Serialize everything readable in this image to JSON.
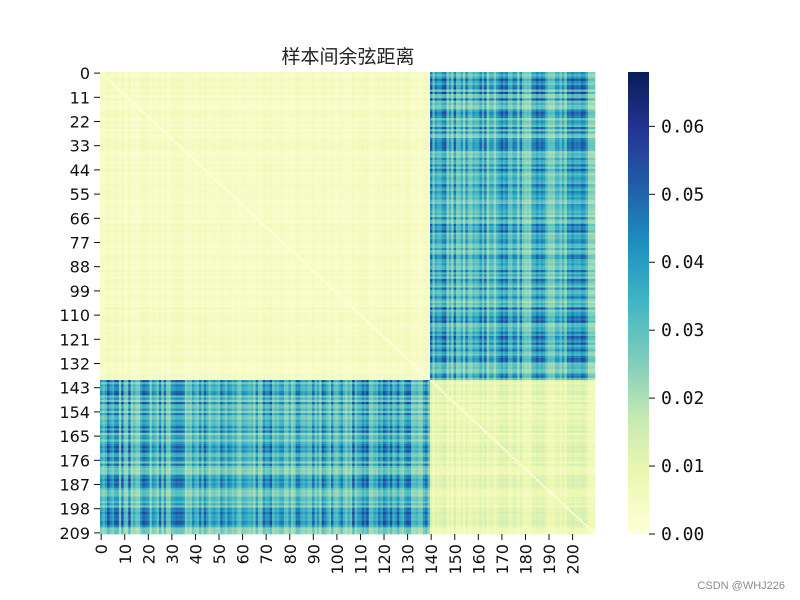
{
  "watermark": "CSDN @WHJ226",
  "chart_data": {
    "type": "heatmap",
    "title": "样本间余弦距离",
    "n_samples": 210,
    "groups": [
      {
        "start": 0,
        "end": 139
      },
      {
        "start": 140,
        "end": 209
      }
    ],
    "value_ranges": {
      "within_group_1": [
        0.0,
        0.008
      ],
      "within_group_2": [
        0.0,
        0.015
      ],
      "between_groups": [
        0.01,
        0.068
      ]
    },
    "y_tick_labels": [
      "0",
      "11",
      "22",
      "33",
      "44",
      "55",
      "66",
      "77",
      "88",
      "99",
      "110",
      "121",
      "132",
      "143",
      "154",
      "165",
      "176",
      "187",
      "198",
      "209"
    ],
    "x_tick_labels": [
      "0",
      "10",
      "20",
      "30",
      "40",
      "50",
      "60",
      "70",
      "80",
      "90",
      "100",
      "110",
      "120",
      "130",
      "140",
      "150",
      "160",
      "170",
      "180",
      "190",
      "200"
    ],
    "colorbar": {
      "colormap": "YlGnBu",
      "min": 0.0,
      "max": 0.068,
      "tick_labels": [
        "0.00",
        "0.01",
        "0.02",
        "0.03",
        "0.04",
        "0.05",
        "0.06"
      ]
    }
  }
}
